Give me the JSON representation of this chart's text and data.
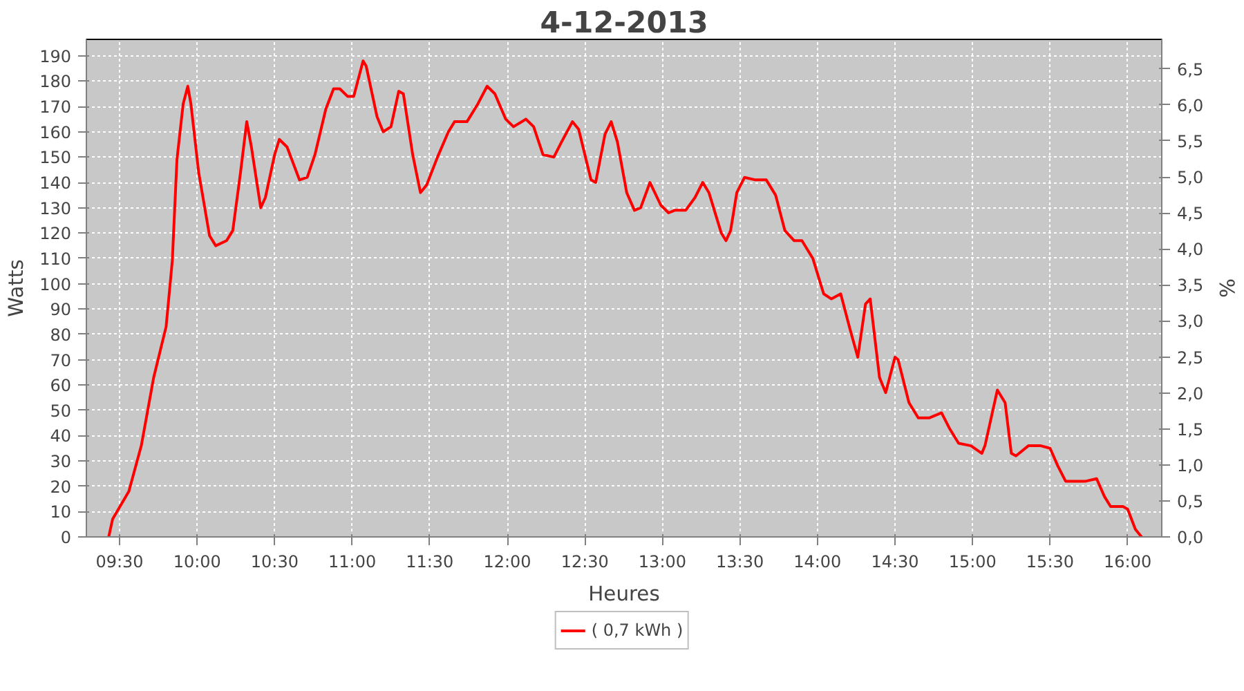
{
  "chart_data": {
    "type": "line",
    "title": "4-12-2013",
    "xlabel": "Heures",
    "ylabel": "Watts",
    "y2label": "%",
    "xlim": [
      9.286,
      16.22
    ],
    "xticks": [
      {
        "value": 9.5,
        "label": "09:30"
      },
      {
        "value": 10,
        "label": "10:00"
      },
      {
        "value": 10.5,
        "label": "10:30"
      },
      {
        "value": 11,
        "label": "11:00"
      },
      {
        "value": 11.5,
        "label": "11:30"
      },
      {
        "value": 12,
        "label": "12:00"
      },
      {
        "value": 12.5,
        "label": "12:30"
      },
      {
        "value": 13,
        "label": "13:00"
      },
      {
        "value": 13.5,
        "label": "13:30"
      },
      {
        "value": 14,
        "label": "14:00"
      },
      {
        "value": 14.5,
        "label": "14:30"
      },
      {
        "value": 15,
        "label": "15:00"
      },
      {
        "value": 15.5,
        "label": "15:30"
      },
      {
        "value": 16,
        "label": "16:00"
      }
    ],
    "ylim": [
      0,
      196.5
    ],
    "yticks": [
      0,
      10,
      20,
      30,
      40,
      50,
      60,
      70,
      80,
      90,
      100,
      110,
      120,
      130,
      140,
      150,
      160,
      170,
      180,
      190
    ],
    "y2lim": [
      0,
      6.91
    ],
    "y2ticks": [
      {
        "value": 0,
        "label": "0,0"
      },
      {
        "value": 0.5,
        "label": "0,5"
      },
      {
        "value": 1,
        "label": "1,0"
      },
      {
        "value": 1.5,
        "label": "1,5"
      },
      {
        "value": 2,
        "label": "2,0"
      },
      {
        "value": 2.5,
        "label": "2,5"
      },
      {
        "value": 3,
        "label": "3,0"
      },
      {
        "value": 3.5,
        "label": "3,5"
      },
      {
        "value": 4,
        "label": "4,0"
      },
      {
        "value": 4.5,
        "label": "4,5"
      },
      {
        "value": 5,
        "label": "5,0"
      },
      {
        "value": 5.5,
        "label": "5,5"
      },
      {
        "value": 6,
        "label": "6,0"
      },
      {
        "value": 6.5,
        "label": "6,5"
      }
    ],
    "grid": true,
    "legend": "bottom",
    "line_style": "solid",
    "series": [
      {
        "name": "( 0,7 kWh )",
        "color": "#ff0000",
        "x": [
          9.43,
          9.455,
          9.56,
          9.64,
          9.72,
          9.8,
          9.84,
          9.87,
          9.91,
          9.94,
          9.96,
          10.01,
          10.08,
          10.12,
          10.19,
          10.23,
          10.28,
          10.32,
          10.35,
          10.41,
          10.44,
          10.5,
          10.53,
          10.58,
          10.66,
          10.71,
          10.76,
          10.83,
          10.88,
          10.92,
          10.97,
          11.01,
          11.07,
          11.09,
          11.16,
          11.2,
          11.25,
          11.3,
          11.33,
          11.39,
          11.44,
          11.48,
          11.55,
          11.62,
          11.66,
          11.74,
          11.81,
          11.87,
          11.92,
          11.99,
          12.04,
          12.12,
          12.17,
          12.23,
          12.3,
          12.35,
          12.42,
          12.46,
          12.54,
          12.57,
          12.63,
          12.67,
          12.71,
          12.77,
          12.82,
          12.86,
          12.92,
          12.99,
          13.04,
          13.08,
          13.15,
          13.21,
          13.26,
          13.3,
          13.38,
          13.41,
          13.44,
          13.48,
          13.53,
          13.6,
          13.67,
          13.73,
          13.79,
          13.85,
          13.9,
          13.97,
          14.04,
          14.09,
          14.15,
          14.21,
          14.26,
          14.31,
          14.34,
          14.4,
          14.44,
          14.5,
          14.52,
          14.59,
          14.65,
          14.72,
          14.8,
          14.85,
          14.91,
          14.99,
          15.06,
          15.08,
          15.16,
          15.21,
          15.25,
          15.28,
          15.36,
          15.44,
          15.5,
          15.55,
          15.6,
          15.66,
          15.73,
          15.8,
          15.85,
          15.89,
          15.97,
          16.0,
          16.05,
          16.09
        ],
        "values": [
          0,
          7,
          18,
          36,
          63,
          83,
          109,
          149,
          171,
          178,
          171,
          144,
          119,
          115,
          117,
          121,
          144,
          164,
          154,
          130,
          134,
          151,
          157,
          154,
          141,
          142,
          151,
          169,
          177,
          177,
          174,
          174,
          188,
          186,
          166,
          160,
          162,
          176,
          175,
          151,
          136,
          139,
          150,
          160,
          164,
          164,
          171,
          178,
          175,
          165,
          162,
          165,
          162,
          151,
          150,
          156,
          164,
          161,
          141,
          140,
          159,
          164,
          156,
          136,
          129,
          130,
          140,
          131,
          128,
          129,
          129,
          134,
          140,
          136,
          120,
          117,
          121,
          136,
          142,
          141,
          141,
          135,
          121,
          117,
          117,
          110,
          96,
          94,
          96,
          82,
          71,
          92,
          94,
          63,
          57,
          71,
          70,
          53,
          47,
          47,
          49,
          43,
          37,
          36,
          33,
          36,
          58,
          53,
          33,
          32,
          36,
          36,
          35,
          28,
          22,
          22,
          22,
          23,
          16,
          12,
          12,
          11,
          3,
          0
        ]
      }
    ]
  }
}
